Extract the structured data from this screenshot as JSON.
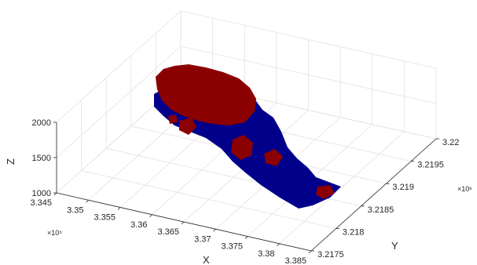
{
  "chart_data": {
    "type": "surface3d",
    "title": "",
    "xlabel": "X",
    "ylabel": "Y",
    "zlabel": "Z",
    "x_multiplier": "×10⁵",
    "y_multiplier": "×10⁶",
    "x_ticks": [
      "3.345",
      "3.35",
      "3.355",
      "3.36",
      "3.365",
      "3.37",
      "3.375",
      "3.38",
      "3.385"
    ],
    "y_ticks": [
      "3.2175",
      "3.218",
      "3.2185",
      "3.219",
      "3.2195",
      "3.22"
    ],
    "z_ticks": [
      "1000",
      "1500",
      "2000"
    ],
    "xlim": [
      334500,
      338500
    ],
    "ylim": [
      3217500,
      3220000
    ],
    "zlim": [
      1000,
      2000
    ],
    "grid": true,
    "colors": {
      "upper": "#8b0000",
      "lower": "#00008b"
    }
  }
}
